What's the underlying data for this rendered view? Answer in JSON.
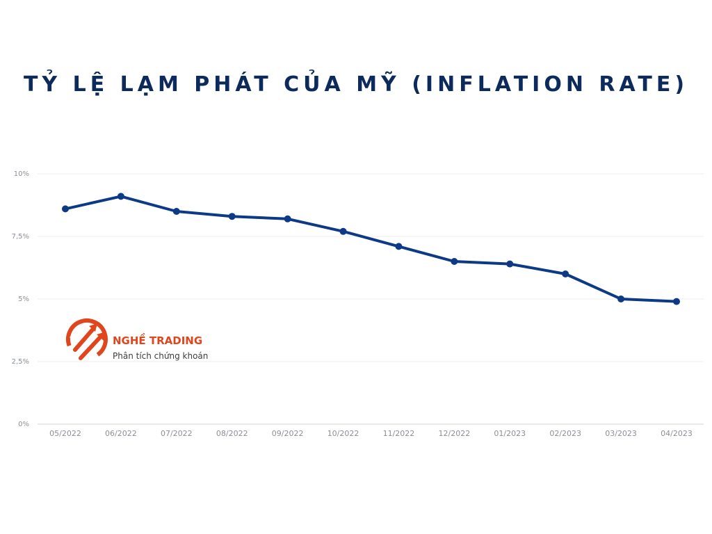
{
  "chart_data": {
    "type": "line",
    "title": "TỶ LỆ LẠM PHÁT CỦA MỸ (INFLATION RATE)",
    "categories": [
      "05/2022",
      "06/2022",
      "07/2022",
      "08/2022",
      "09/2022",
      "10/2022",
      "11/2022",
      "12/2022",
      "01/2023",
      "02/2023",
      "03/2023",
      "04/2023"
    ],
    "series": [
      {
        "values": [
          8.6,
          9.1,
          8.5,
          8.3,
          8.2,
          7.7,
          7.1,
          6.5,
          6.4,
          6.0,
          5.0,
          4.9
        ]
      }
    ],
    "ylim": [
      0,
      10
    ],
    "yticks": [
      {
        "value": 0,
        "label": "0%"
      },
      {
        "value": 2.5,
        "label": "2,5%"
      },
      {
        "value": 5,
        "label": "5%"
      },
      {
        "value": 7.5,
        "label": "7,5%"
      },
      {
        "value": 10,
        "label": "10%"
      }
    ],
    "xlabel": "",
    "ylabel": "",
    "grid": true,
    "line_color": "#0d3a86",
    "grid_color": "#ececec"
  },
  "watermark": {
    "name": "NGHỀ TRADING",
    "tagline": "Phân tích chứng khoán",
    "color": "#e0461e",
    "icon": "trading-arrows-logo"
  }
}
